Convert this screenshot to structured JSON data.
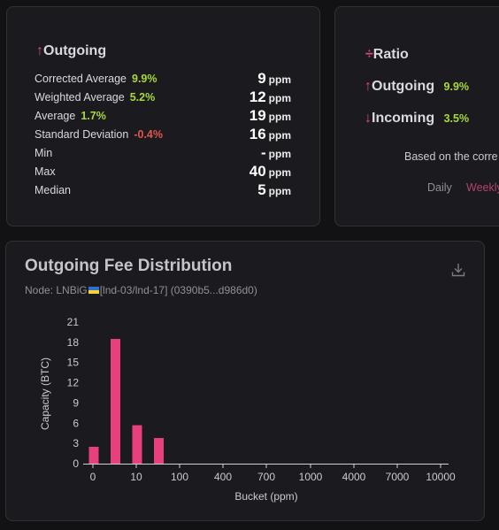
{
  "outgoing_card": {
    "title": "Outgoing",
    "arrow": "↑",
    "stats": [
      {
        "label": "Corrected Average",
        "pct": "9.9%",
        "pct_sign": "pos",
        "value": "9",
        "unit": "ppm"
      },
      {
        "label": "Weighted Average",
        "pct": "5.2%",
        "pct_sign": "pos",
        "value": "12",
        "unit": "ppm"
      },
      {
        "label": "Average",
        "pct": "1.7%",
        "pct_sign": "pos",
        "value": "19",
        "unit": "ppm"
      },
      {
        "label": "Standard Deviation",
        "pct": "-0.4%",
        "pct_sign": "neg",
        "value": "16",
        "unit": "ppm"
      },
      {
        "label": "Min",
        "pct": "",
        "pct_sign": "",
        "value": "-",
        "unit": "ppm"
      },
      {
        "label": "Max",
        "pct": "",
        "pct_sign": "",
        "value": "40",
        "unit": "ppm"
      },
      {
        "label": "Median",
        "pct": "",
        "pct_sign": "",
        "value": "5",
        "unit": "ppm"
      }
    ]
  },
  "ratio_card": {
    "title": "Ratio",
    "symbol": "÷",
    "outgoing_label": "Outgoing",
    "outgoing_pct": "9.9%",
    "incoming_label": "Incoming",
    "incoming_pct": "3.5%",
    "arrow_up": "↑",
    "arrow_down": "↓",
    "based_on": "Based on the corre",
    "tabs": [
      "Daily",
      "Weekly"
    ]
  },
  "distribution": {
    "title": "Outgoing Fee Distribution",
    "node_prefix": "Node: LNBiG",
    "node_suffix": "[lnd-03/lnd-17] (0390b5...d986d0)",
    "colors": {
      "bar": "#e83f7f",
      "axis": "#d0d0d4"
    }
  },
  "chart_data": {
    "type": "bar",
    "categories": [
      "0",
      "10",
      "100",
      "400",
      "700",
      "1000",
      "4000",
      "7000",
      "10000"
    ],
    "bars": [
      {
        "x": 0,
        "value": 2.5
      },
      {
        "x": 5,
        "value": 18.5
      },
      {
        "x": 10,
        "value": 5.7
      },
      {
        "x": 15,
        "value": 3.8
      }
    ],
    "xlabel": "Bucket (ppm)",
    "ylabel": "Capacity (BTC)",
    "yticks": [
      "0",
      "3",
      "6",
      "9",
      "12",
      "15",
      "18",
      "21"
    ],
    "ylim": [
      0,
      21
    ]
  }
}
